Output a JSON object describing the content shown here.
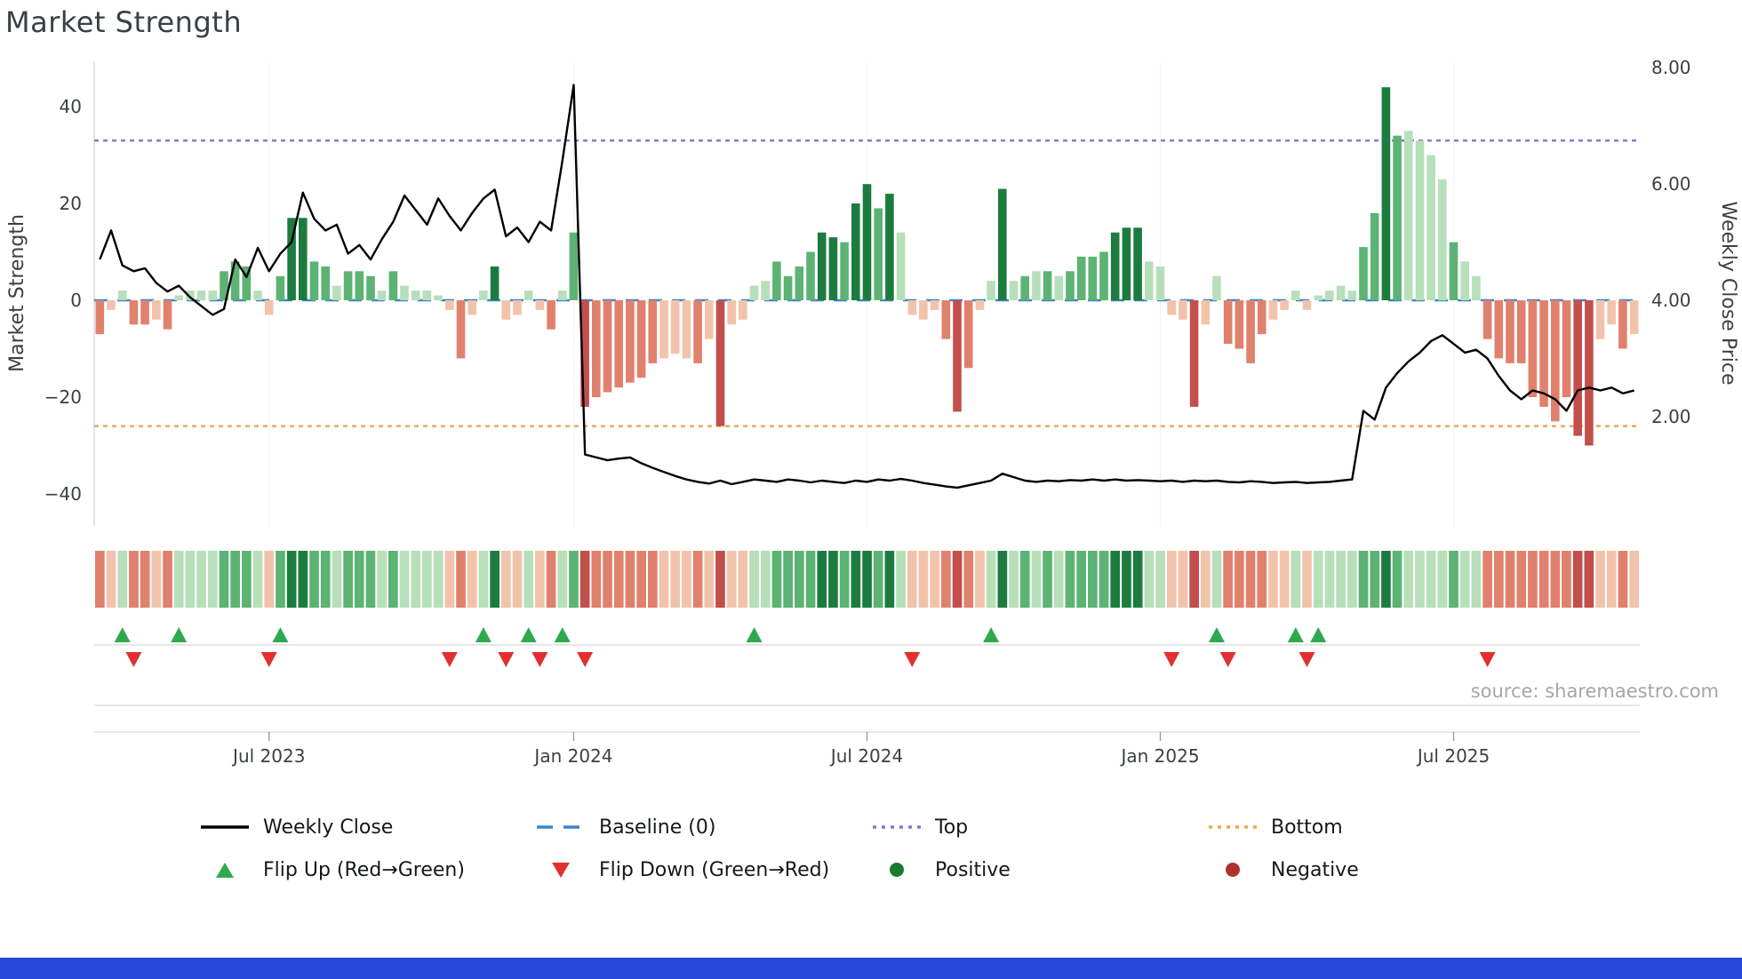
{
  "title": "Market Strength",
  "source": "source: sharemaestro.com",
  "colors": {
    "pos_light": "#b7dfb9",
    "pos_mid": "#5cb374",
    "pos_dark": "#1c7c3f",
    "neg_light": "#f2c3ab",
    "neg_mid": "#e0816d",
    "neg_dark": "#c24f4c",
    "line": "#000000",
    "baseline": "#3d85c6",
    "top": "#8a6fd8",
    "bottom": "#f0a358",
    "flip_up": "#2eaa4e",
    "flip_down": "#e03030",
    "positive_dot": "#1a7a2e",
    "negative_dot": "#b03030",
    "footer_bar": "#2647d7"
  },
  "chart_data": {
    "type": "bar+line",
    "x_unit": "week_index",
    "series": [
      {
        "name": "Market Strength",
        "type": "bar",
        "axis": "left",
        "values": [
          -7,
          -2,
          2,
          -5,
          -5,
          -4,
          -6,
          1,
          2,
          2,
          2,
          6,
          8,
          7,
          2,
          -3,
          5,
          17,
          17,
          8,
          7,
          3,
          6,
          6,
          5,
          2,
          6,
          3,
          2,
          2,
          1,
          -2,
          -12,
          -3,
          2,
          7,
          -4,
          -3,
          2,
          -2,
          -6,
          2,
          14,
          -22,
          -20,
          -19,
          -18,
          -17,
          -16,
          -13,
          -12,
          -11,
          -12,
          -13,
          -8,
          -26,
          -5,
          -4,
          3,
          4,
          8,
          5,
          7,
          10,
          14,
          13,
          12,
          20,
          24,
          19,
          22,
          14,
          -3,
          -4,
          -2,
          -8,
          -23,
          -14,
          -2,
          4,
          23,
          4,
          5,
          6,
          6,
          5,
          6,
          9,
          9,
          10,
          14,
          15,
          15,
          8,
          7,
          -3,
          -4,
          -22,
          -5,
          5,
          -9,
          -10,
          -13,
          -7,
          -4,
          -2,
          2,
          -2,
          1,
          2,
          3,
          2,
          11,
          18,
          44,
          34,
          35,
          33,
          30,
          25,
          12,
          8,
          5,
          -8,
          -12,
          -13,
          -13,
          -20,
          -22,
          -25,
          -20,
          -28,
          -30,
          -8,
          -5,
          -10,
          -7
        ]
      },
      {
        "name": "Weekly Close",
        "type": "line",
        "axis": "right",
        "values": [
          4.7,
          5.2,
          4.6,
          4.5,
          4.55,
          4.3,
          4.15,
          4.25,
          4.05,
          3.9,
          3.75,
          3.85,
          4.7,
          4.4,
          4.9,
          4.5,
          4.8,
          5.0,
          5.85,
          5.4,
          5.2,
          5.3,
          4.8,
          4.95,
          4.7,
          5.05,
          5.35,
          5.8,
          5.55,
          5.3,
          5.75,
          5.45,
          5.2,
          5.5,
          5.75,
          5.9,
          5.1,
          5.25,
          5.0,
          5.35,
          5.2,
          6.4,
          7.7,
          1.35,
          1.3,
          1.25,
          1.28,
          1.3,
          1.2,
          1.12,
          1.05,
          0.98,
          0.92,
          0.88,
          0.85,
          0.9,
          0.84,
          0.88,
          0.92,
          0.9,
          0.88,
          0.92,
          0.9,
          0.87,
          0.9,
          0.88,
          0.86,
          0.9,
          0.88,
          0.92,
          0.9,
          0.93,
          0.9,
          0.86,
          0.83,
          0.8,
          0.78,
          0.82,
          0.86,
          0.9,
          1.02,
          0.96,
          0.9,
          0.88,
          0.9,
          0.89,
          0.91,
          0.9,
          0.92,
          0.9,
          0.92,
          0.9,
          0.91,
          0.9,
          0.89,
          0.9,
          0.88,
          0.9,
          0.89,
          0.9,
          0.88,
          0.87,
          0.89,
          0.88,
          0.86,
          0.87,
          0.88,
          0.86,
          0.87,
          0.88,
          0.9,
          0.92,
          2.1,
          1.95,
          2.5,
          2.75,
          2.95,
          3.1,
          3.3,
          3.4,
          3.25,
          3.1,
          3.15,
          3.0,
          2.7,
          2.45,
          2.3,
          2.45,
          2.4,
          2.3,
          2.1,
          2.45,
          2.5,
          2.45,
          2.5,
          2.4,
          2.45
        ]
      }
    ],
    "bar_shades": "rpLrrprLLLLgggLpgGGggLgggLgLLLLprpLGppLprLgRrrrrrrppprpRppLLggggGGgGGgGLppprRrpLGLgLgLggggGGGLLppRpLrrrrppLpLLLLggGgLLLLgLLrrrrrrrrRRpprp",
    "shade_key": {
      "L": "light green",
      "g": "medium green",
      "G": "dark green",
      "p": "pale red",
      "r": "medium red",
      "R": "dark red"
    },
    "baseline": 0,
    "top_level": 33,
    "bottom_level": -26,
    "flip_up_indices": [
      2,
      7,
      16,
      34,
      38,
      41,
      58,
      79,
      99,
      106,
      108
    ],
    "flip_down_indices": [
      3,
      15,
      31,
      36,
      39,
      43,
      72,
      95,
      100,
      107,
      123
    ],
    "left_axis": {
      "label": "Market Strength",
      "range": [
        -46,
        49
      ],
      "ticks": [
        {
          "v": 40,
          "label": "40"
        },
        {
          "v": 20,
          "label": "20"
        },
        {
          "v": 0,
          "label": "0"
        },
        {
          "v": -20,
          "label": "−20"
        },
        {
          "v": -40,
          "label": "−40"
        }
      ]
    },
    "right_axis": {
      "label": "Weekly Close Price",
      "range": [
        0.6,
        8.1
      ],
      "ticks": [
        {
          "v": 8,
          "label": "8.00"
        },
        {
          "v": 6,
          "label": "6.00"
        },
        {
          "v": 4,
          "label": "4.00"
        },
        {
          "v": 2,
          "label": "2.00"
        }
      ]
    },
    "x_axis": {
      "ticks": [
        {
          "i": 15,
          "label": "Jul 2023"
        },
        {
          "i": 42,
          "label": "Jan 2024"
        },
        {
          "i": 68,
          "label": "Jul 2024"
        },
        {
          "i": 94,
          "label": "Jan 2025"
        },
        {
          "i": 120,
          "label": "Jul 2025"
        }
      ]
    },
    "heatmap": "strip below chart mirrors bar sign/shade per week"
  },
  "legend": {
    "items": [
      {
        "label": "Weekly Close",
        "marker": "solid-black-line"
      },
      {
        "label": "Baseline (0)",
        "marker": "blue-dashed-line"
      },
      {
        "label": "Top",
        "marker": "purple-dotted-line"
      },
      {
        "label": "Bottom",
        "marker": "orange-dotted-line"
      },
      {
        "label": "Flip Up (Red→Green)",
        "marker": "green-up-triangle"
      },
      {
        "label": "Flip Down (Green→Red)",
        "marker": "red-down-triangle"
      },
      {
        "label": "Positive",
        "marker": "green-dot"
      },
      {
        "label": "Negative",
        "marker": "dark-red-dot"
      }
    ]
  }
}
